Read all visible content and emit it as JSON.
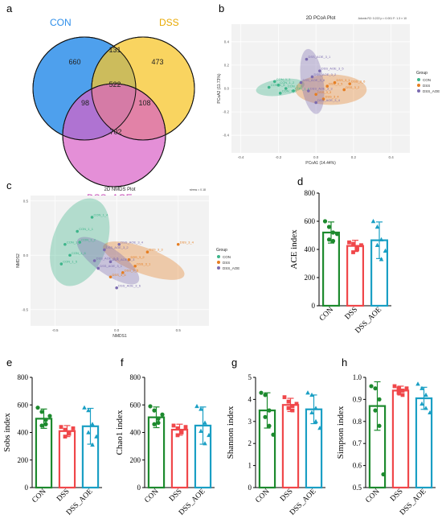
{
  "panels": {
    "a": "a",
    "b": "b",
    "c": "c",
    "d": "d",
    "e": "e",
    "f": "f",
    "g": "g",
    "h": "h"
  },
  "chart_data": [
    {
      "panel": "a",
      "type": "venn",
      "sets": [
        "CON",
        "DSS",
        "DSS_AOE"
      ],
      "colors": {
        "CON": "#2f8fea",
        "DSS": "#f7c52b",
        "DSS_AOE": "#d960c6"
      },
      "regions": {
        "CON_only": 660,
        "DSS_only": 473,
        "AOE_only": 702,
        "CON_DSS": 131,
        "CON_AOE": 98,
        "DSS_AOE": 108,
        "all": 522
      }
    },
    {
      "panel": "b",
      "type": "scatter",
      "title": "2D PCoA Plot",
      "stat": "Adonis R2: 0.222   p = 0.001   F: 1.3 × 10",
      "xlabel": "PCoA1 (14.44%)",
      "ylabel": "PCoA2 (11.73%)",
      "xlim": [
        -0.45,
        0.5
      ],
      "ylim": [
        -0.55,
        0.55
      ],
      "xticks": [
        "-0.4",
        "-0.2",
        "0.0",
        "0.2",
        "0.4"
      ],
      "yticks": [
        "-0.4",
        "-0.2",
        "0.0",
        "0.2",
        "0.4"
      ],
      "legend_title": "Group",
      "legend": [
        "CON",
        "DSS",
        "DSS_AOE"
      ],
      "colors": {
        "CON": "#3db58a",
        "DSS": "#e67e22",
        "DSS_AOE": "#7b6bb0"
      },
      "series": [
        {
          "name": "CON",
          "points": [
            [
              -0.22,
              0.06,
              "CON_1_1"
            ],
            [
              -0.2,
              0.03,
              "CON_1_2"
            ],
            [
              -0.16,
              0.0,
              "CON_1_3"
            ],
            [
              -0.12,
              -0.02,
              "CON_1_4"
            ],
            [
              -0.25,
              0.01,
              "CON_1_5"
            ],
            [
              -0.19,
              -0.04,
              "CON_1_6"
            ]
          ]
        },
        {
          "name": "DSS",
          "points": [
            [
              0.1,
              0.05,
              "DSS_3_1"
            ],
            [
              0.15,
              -0.01,
              "DSS_3_2"
            ],
            [
              0.0,
              -0.05,
              "DSS_3_3"
            ],
            [
              0.04,
              -0.09,
              "DSS_3_4"
            ],
            [
              0.06,
              0.02,
              "DSS_3_5"
            ],
            [
              0.18,
              0.04,
              "DSS_3_6"
            ]
          ]
        },
        {
          "name": "DSS_AOE",
          "points": [
            [
              -0.05,
              0.25,
              "DSS_AOE_3_1"
            ],
            [
              -0.02,
              0.1,
              "DSS_AOE_3_2"
            ],
            [
              -0.04,
              -0.02,
              "DSS_AOE_3_3"
            ],
            [
              0.0,
              -0.12,
              "DSS_AOE_3_4"
            ],
            [
              0.02,
              0.15,
              "DSS_AOE_3_5"
            ],
            [
              -0.08,
              0.05,
              "DSS_AOE_3_6"
            ]
          ]
        }
      ]
    },
    {
      "panel": "c",
      "type": "scatter",
      "title": "2D NMDS Plot",
      "stat": "stress = 0.18",
      "xlabel": "NMDS1",
      "ylabel": "NMDS2",
      "xlim": [
        -0.7,
        0.75
      ],
      "ylim": [
        -0.65,
        0.55
      ],
      "xticks": [
        "-0.5",
        "0.0",
        "0.5"
      ],
      "yticks": [
        "-0.5",
        "0.0",
        "0.5"
      ],
      "legend_title": "Group",
      "legend": [
        "CON",
        "DSS",
        "DSS_AOE"
      ],
      "colors": {
        "CON": "#3db58a",
        "DSS": "#e67e22",
        "DSS_AOE": "#7b6bb0"
      },
      "series": [
        {
          "name": "CON",
          "points": [
            [
              -0.2,
              0.35,
              "CON_1_4"
            ],
            [
              -0.32,
              0.22,
              "CON_1_1"
            ],
            [
              -0.42,
              0.1,
              "CON_1_3"
            ],
            [
              -0.3,
              0.12,
              "CON_1_2"
            ],
            [
              -0.38,
              0.0,
              "CON_1_6"
            ],
            [
              -0.45,
              -0.08,
              "CON_1_5"
            ]
          ]
        },
        {
          "name": "DSS",
          "points": [
            [
              0.5,
              0.1,
              "DSS_3_4"
            ],
            [
              0.25,
              0.03,
              "DSS_3_3"
            ],
            [
              0.1,
              -0.04,
              "DSS_3_2"
            ],
            [
              0.15,
              -0.1,
              "DSS_3_1"
            ],
            [
              0.05,
              -0.16,
              "DSS_3_5"
            ],
            [
              -0.05,
              -0.2,
              "DSS_3_6"
            ]
          ]
        },
        {
          "name": "DSS_AOE",
          "points": [
            [
              0.02,
              0.1,
              "DSS_AOE_3_4"
            ],
            [
              -0.1,
              0.05,
              "DSS_AOE_3_2"
            ],
            [
              -0.05,
              -0.06,
              "DSS_AOE_3_3"
            ],
            [
              -0.15,
              -0.12,
              "DSS_AOE_3_1"
            ],
            [
              -0.18,
              -0.05,
              "DSS_AOE_3_5"
            ],
            [
              0.0,
              -0.3,
              "DSS_AOE_3_6"
            ]
          ]
        }
      ]
    },
    {
      "panel": "d",
      "type": "bar",
      "ylabel": "ACE index",
      "ylim": [
        0,
        800
      ],
      "yticks": [
        "0",
        "200",
        "400",
        "600",
        "800"
      ],
      "categories": [
        "CON",
        "DSS",
        "DSS_AOE"
      ],
      "colors": [
        "#1d8a2e",
        "#f0474a",
        "#1a9fc4"
      ],
      "values": [
        520,
        425,
        465
      ],
      "sd": [
        75,
        40,
        130
      ],
      "points": [
        [
          600,
          560,
          520,
          470,
          460,
          510
        ],
        [
          450,
          440,
          410,
          380,
          400,
          430
        ],
        [
          600,
          560,
          470,
          430,
          330,
          390
        ]
      ],
      "markers": [
        "circle",
        "square",
        "triangle"
      ]
    },
    {
      "panel": "e",
      "type": "bar",
      "ylabel": "Sobs index",
      "ylim": [
        0,
        800
      ],
      "yticks": [
        "0",
        "200",
        "400",
        "600",
        "800"
      ],
      "categories": [
        "CON",
        "DSS",
        "DSS_AOE"
      ],
      "colors": [
        "#1d8a2e",
        "#f0474a",
        "#1a9fc4"
      ],
      "values": [
        500,
        410,
        445
      ],
      "sd": [
        70,
        40,
        130
      ],
      "points": [
        [
          580,
          550,
          490,
          450,
          460,
          520
        ],
        [
          440,
          420,
          390,
          370,
          400,
          430
        ],
        [
          580,
          560,
          460,
          400,
          310,
          370
        ]
      ],
      "markers": [
        "circle",
        "square",
        "triangle"
      ]
    },
    {
      "panel": "f",
      "type": "bar",
      "ylabel": "Chao1 index",
      "ylim": [
        0,
        800
      ],
      "yticks": [
        "0",
        "200",
        "400",
        "600",
        "800"
      ],
      "categories": [
        "CON",
        "DSS",
        "DSS_AOE"
      ],
      "colors": [
        "#1d8a2e",
        "#f0474a",
        "#1a9fc4"
      ],
      "values": [
        510,
        420,
        450
      ],
      "sd": [
        75,
        40,
        135
      ],
      "points": [
        [
          590,
          560,
          500,
          460,
          470,
          530
        ],
        [
          450,
          430,
          400,
          380,
          410,
          440
        ],
        [
          590,
          570,
          470,
          410,
          320,
          380
        ]
      ],
      "markers": [
        "circle",
        "square",
        "triangle"
      ]
    },
    {
      "panel": "g",
      "type": "bar",
      "ylabel": "Shannon index",
      "ylim": [
        0,
        5
      ],
      "yticks": [
        "0",
        "1",
        "2",
        "3",
        "4",
        "5"
      ],
      "categories": [
        "CON",
        "DSS",
        "DSS_AOE"
      ],
      "colors": [
        "#1d8a2e",
        "#f0474a",
        "#1a9fc4"
      ],
      "values": [
        3.5,
        3.75,
        3.55
      ],
      "sd": [
        0.8,
        0.3,
        0.65
      ],
      "points": [
        [
          4.3,
          4.2,
          3.5,
          3.2,
          2.8,
          2.4
        ],
        [
          4.1,
          3.9,
          3.7,
          3.6,
          3.5,
          3.8
        ],
        [
          4.3,
          4.2,
          3.6,
          3.4,
          3.0,
          2.7
        ]
      ],
      "markers": [
        "circle",
        "square",
        "triangle"
      ]
    },
    {
      "panel": "h",
      "type": "bar",
      "ylabel": "Simpson index",
      "ylim": [
        0.5,
        1.0
      ],
      "yticks": [
        "0.5",
        "0.6",
        "0.7",
        "0.8",
        "0.9",
        "1.0"
      ],
      "categories": [
        "CON",
        "DSS",
        "DSS_AOE"
      ],
      "colors": [
        "#1d8a2e",
        "#f0474a",
        "#1a9fc4"
      ],
      "values": [
        0.87,
        0.94,
        0.905
      ],
      "sd": [
        0.11,
        0.02,
        0.05
      ],
      "points": [
        [
          0.96,
          0.95,
          0.9,
          0.85,
          0.78,
          0.56
        ],
        [
          0.96,
          0.95,
          0.94,
          0.93,
          0.92,
          0.95
        ],
        [
          0.97,
          0.95,
          0.92,
          0.88,
          0.86,
          0.84
        ]
      ],
      "markers": [
        "circle",
        "square",
        "triangle"
      ]
    }
  ]
}
